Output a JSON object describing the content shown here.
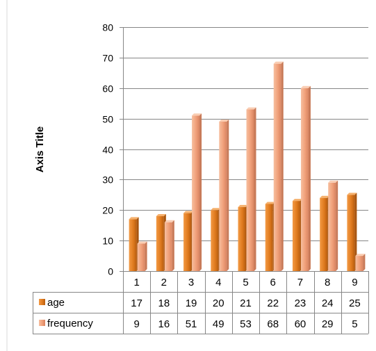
{
  "chart_data": {
    "type": "bar",
    "categories": [
      "1",
      "2",
      "3",
      "4",
      "5",
      "6",
      "7",
      "8",
      "9"
    ],
    "series": [
      {
        "name": "age",
        "values": [
          17,
          18,
          19,
          20,
          21,
          22,
          23,
          24,
          25
        ],
        "color": "#e07b1f"
      },
      {
        "name": "frequency",
        "values": [
          9,
          16,
          51,
          49,
          53,
          68,
          60,
          29,
          5
        ],
        "color": "#f0a07a"
      }
    ],
    "ylabel": "Axis Title",
    "xlabel": "",
    "ylim": [
      0,
      80
    ],
    "yticks": [
      0,
      10,
      20,
      30,
      40,
      50,
      60,
      70,
      80
    ],
    "grid": true,
    "data_table": true
  }
}
